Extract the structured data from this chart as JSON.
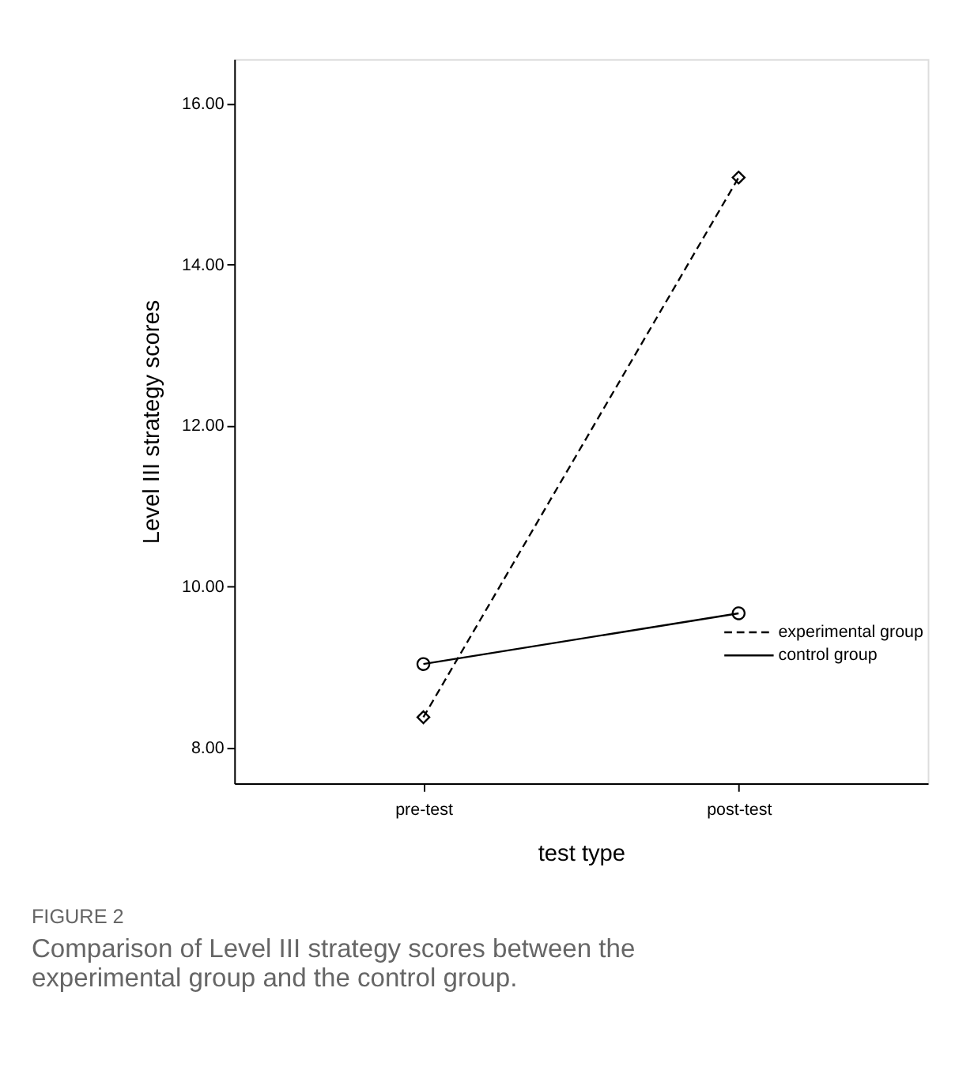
{
  "chart_data": {
    "type": "line",
    "categories": [
      "pre-test",
      "post-test"
    ],
    "series": [
      {
        "name": "experimental group",
        "color": "#000000",
        "values": [
          8.38,
          15.08
        ],
        "line_style": "dashed",
        "marker": "diamond"
      },
      {
        "name": "control group",
        "color": "#000000",
        "values": [
          9.04,
          9.67
        ],
        "line_style": "solid",
        "marker": "circle"
      }
    ],
    "xlabel": "test type",
    "ylabel": "Level III strategy scores",
    "ylim": [
      7.56,
      16.55
    ],
    "yticks": [
      {
        "value": 8,
        "label": "8.00"
      },
      {
        "value": 10,
        "label": "10.00"
      },
      {
        "value": 12,
        "label": "12.00"
      },
      {
        "value": 14,
        "label": "14.00"
      },
      {
        "value": 16,
        "label": "16.00"
      }
    ],
    "grid": false,
    "legend": "bottom right",
    "annotations": [
      "FIGURE 2",
      "Comparison of Level III strategy scores between the experimental group and the control group."
    ]
  }
}
